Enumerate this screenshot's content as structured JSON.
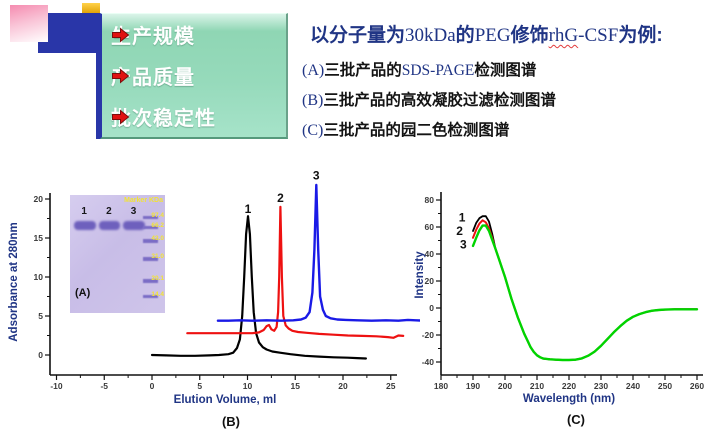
{
  "bullets": {
    "items": [
      {
        "label": "生产规模"
      },
      {
        "label": "产品质量"
      },
      {
        "label": "批次稳定性"
      }
    ],
    "arrow_color": "#e01212",
    "panel_color": "#96dabb"
  },
  "intro": {
    "line1": {
      "t1": "以分子量为",
      "t2": "30kDa",
      "t3": "的",
      "t4": "PEG",
      "t5": "修饰",
      "t6": "rhG",
      "t7": "-CSF",
      "t8": "为例:"
    },
    "items": [
      {
        "prefix": "(A)",
        "t1": "三批产品的",
        "lat": "SDS-PAGE",
        "t2": "检测图谱"
      },
      {
        "prefix": "(B)",
        "t1": "三批产品的高效凝胶过滤检测图谱",
        "lat": "",
        "t2": ""
      },
      {
        "prefix": "(C)",
        "t1": "三批产品的园二色检测图谱",
        "lat": "",
        "t2": ""
      }
    ],
    "text_color": "#203585"
  },
  "gel": {
    "panel_label": "(A)",
    "header": "Marker KDa",
    "lanes": [
      {
        "label": "1",
        "x": 4
      },
      {
        "label": "2",
        "x": 30
      },
      {
        "label": "3",
        "x": 56
      }
    ],
    "marker": [
      {
        "kda": "97.4",
        "frac": 0.175
      },
      {
        "kda": "66.2",
        "frac": 0.26
      },
      {
        "kda": "43.0",
        "frac": 0.375
      },
      {
        "kda": "31.0",
        "frac": 0.525
      },
      {
        "kda": "20.1",
        "frac": 0.715
      },
      {
        "kda": "14.4",
        "frac": 0.845
      }
    ]
  },
  "chart_data": [
    {
      "type": "line",
      "panel_label": "(B)",
      "xlabel": "Elution Volume, ml",
      "ylabel": "Adsorbance at 280nm",
      "xlim": [
        -10,
        25
      ],
      "ylim": [
        0,
        20
      ],
      "xticks": [
        -10,
        -5,
        0,
        5,
        10,
        15,
        20,
        25
      ],
      "yticks": [
        0,
        5,
        10,
        15,
        20
      ],
      "legend": "none",
      "grid": false,
      "series": [
        {
          "name": "1",
          "color": "#000000",
          "points": [
            [
              0,
              0
            ],
            [
              1.5,
              -0.05
            ],
            [
              3,
              -0.1
            ],
            [
              4.5,
              -0.1
            ],
            [
              6,
              -0.05
            ],
            [
              7,
              0
            ],
            [
              8,
              0.1
            ],
            [
              8.5,
              0.3
            ],
            [
              8.9,
              0.9
            ],
            [
              9.2,
              2
            ],
            [
              9.45,
              5
            ],
            [
              9.65,
              10
            ],
            [
              9.85,
              15.5
            ],
            [
              10.05,
              17.8
            ],
            [
              10.25,
              15.5
            ],
            [
              10.45,
              10
            ],
            [
              10.65,
              5.5
            ],
            [
              10.9,
              2.8
            ],
            [
              11.2,
              1.6
            ],
            [
              11.6,
              1
            ],
            [
              12,
              0.7
            ],
            [
              12.6,
              0.45
            ],
            [
              13.4,
              0.3
            ],
            [
              14.5,
              0.1
            ],
            [
              16,
              -0.1
            ],
            [
              17.5,
              -0.2
            ],
            [
              19,
              -0.3
            ],
            [
              20.5,
              -0.35
            ],
            [
              21.5,
              -0.4
            ],
            [
              22.4,
              -0.45
            ]
          ]
        },
        {
          "name": "2",
          "color": "#ee1111",
          "points": [
            [
              3.7,
              2.8
            ],
            [
              5,
              2.8
            ],
            [
              6.5,
              2.8
            ],
            [
              8,
              2.8
            ],
            [
              9.5,
              2.8
            ],
            [
              10.5,
              2.8
            ],
            [
              11.2,
              2.9
            ],
            [
              11.7,
              3.2
            ],
            [
              12,
              3.7
            ],
            [
              12.25,
              3.85
            ],
            [
              12.5,
              3.3
            ],
            [
              12.8,
              3.1
            ],
            [
              13.05,
              3.6
            ],
            [
              13.2,
              5.5
            ],
            [
              13.32,
              10
            ],
            [
              13.45,
              19
            ],
            [
              13.6,
              10
            ],
            [
              13.75,
              5
            ],
            [
              14,
              3.8
            ],
            [
              14.3,
              3.4
            ],
            [
              14.7,
              3.1
            ],
            [
              15.3,
              2.95
            ],
            [
              16.2,
              2.85
            ],
            [
              17.5,
              2.7
            ],
            [
              19,
              2.6
            ],
            [
              20.5,
              2.5
            ],
            [
              22,
              2.45
            ],
            [
              23.5,
              2.4
            ],
            [
              24.7,
              2.3
            ],
            [
              25.3,
              2.2
            ],
            [
              25.8,
              2.5
            ],
            [
              26.3,
              2.45
            ]
          ]
        },
        {
          "name": "3",
          "color": "#1a1ae6",
          "points": [
            [
              6.9,
              4.4
            ],
            [
              8,
              4.4
            ],
            [
              9.2,
              4.45
            ],
            [
              10.5,
              4.4
            ],
            [
              12,
              4.45
            ],
            [
              13.5,
              4.4
            ],
            [
              14.8,
              4.45
            ],
            [
              15.6,
              4.55
            ],
            [
              16.1,
              4.8
            ],
            [
              16.5,
              5.5
            ],
            [
              16.8,
              8
            ],
            [
              17,
              13.5
            ],
            [
              17.2,
              21.8
            ],
            [
              17.4,
              13.5
            ],
            [
              17.6,
              7.5
            ],
            [
              17.9,
              5.8
            ],
            [
              18.2,
              5
            ],
            [
              18.7,
              4.7
            ],
            [
              19.4,
              4.55
            ],
            [
              20.3,
              4.5
            ],
            [
              21.5,
              4.45
            ],
            [
              23,
              4.4
            ],
            [
              24.5,
              4.45
            ],
            [
              25.8,
              4.4
            ],
            [
              26.8,
              4.5
            ],
            [
              27.6,
              4.45
            ],
            [
              28.5,
              4.4
            ]
          ]
        }
      ],
      "annotations": [
        {
          "text": "1",
          "x": 10.05,
          "y": 18.2
        },
        {
          "text": "2",
          "x": 13.45,
          "y": 19.6
        },
        {
          "text": "3",
          "x": 17.2,
          "y": 22.5
        }
      ]
    },
    {
      "type": "line",
      "panel_label": "(C)",
      "xlabel": "Wavelength (nm)",
      "ylabel": "Intensity",
      "xlim": [
        180,
        260
      ],
      "ylim": [
        -40,
        80
      ],
      "xticks": [
        180,
        190,
        200,
        210,
        220,
        230,
        240,
        250,
        260
      ],
      "yticks": [
        -40,
        -20,
        0,
        20,
        40,
        60,
        80
      ],
      "legend": "none",
      "grid": false,
      "series": [
        {
          "name": "1",
          "color": "#000000",
          "points": [
            [
              190,
              57
            ],
            [
              191,
              63
            ],
            [
              192,
              66.5
            ],
            [
              193,
              68
            ],
            [
              194,
              68
            ],
            [
              195,
              64
            ],
            [
              196,
              55
            ],
            [
              197,
              44
            ],
            [
              198,
              37
            ],
            [
              199,
              30
            ],
            [
              200,
              23
            ],
            [
              201,
              15
            ],
            [
              202,
              7
            ],
            [
              203,
              0
            ],
            [
              204,
              -7
            ],
            [
              205,
              -13
            ],
            [
              206,
              -19
            ],
            [
              207,
              -24
            ],
            [
              208,
              -29
            ],
            [
              209,
              -32.5
            ],
            [
              210,
              -35
            ],
            [
              211,
              -36.5
            ],
            [
              212,
              -37.5
            ],
            [
              214,
              -38
            ],
            [
              216,
              -38.3
            ],
            [
              218,
              -38.5
            ],
            [
              220,
              -38.5
            ],
            [
              222,
              -38.3
            ],
            [
              224,
              -37.3
            ],
            [
              226,
              -35.3
            ],
            [
              228,
              -32.3
            ],
            [
              230,
              -28
            ],
            [
              232,
              -23
            ],
            [
              234,
              -18
            ],
            [
              236,
              -13.5
            ],
            [
              238,
              -9.5
            ],
            [
              240,
              -6.5
            ],
            [
              242,
              -4.5
            ],
            [
              244,
              -3
            ],
            [
              246,
              -2
            ],
            [
              248,
              -1.5
            ],
            [
              250,
              -1.2
            ],
            [
              253,
              -1
            ],
            [
              256,
              -1
            ],
            [
              260,
              -1
            ]
          ]
        },
        {
          "name": "2",
          "color": "#ee1111",
          "points": [
            [
              190,
              52
            ],
            [
              191,
              58
            ],
            [
              192,
              62.5
            ],
            [
              193,
              65
            ],
            [
              194,
              63.5
            ],
            [
              195,
              59
            ],
            [
              196,
              52
            ],
            [
              197,
              44
            ],
            [
              198,
              37
            ],
            [
              199,
              30
            ],
            [
              200,
              23
            ],
            [
              201,
              15
            ],
            [
              202,
              7
            ],
            [
              203,
              0
            ],
            [
              204,
              -7
            ],
            [
              205,
              -13
            ],
            [
              206,
              -19
            ],
            [
              207,
              -24
            ],
            [
              208,
              -29
            ],
            [
              209,
              -32.5
            ],
            [
              210,
              -35
            ],
            [
              211,
              -36.5
            ],
            [
              212,
              -37.5
            ],
            [
              214,
              -38
            ],
            [
              216,
              -38.3
            ],
            [
              218,
              -38.5
            ],
            [
              220,
              -38.5
            ],
            [
              222,
              -38.3
            ],
            [
              224,
              -37.3
            ],
            [
              226,
              -35.3
            ],
            [
              228,
              -32.3
            ],
            [
              230,
              -28
            ],
            [
              232,
              -23
            ],
            [
              234,
              -18
            ],
            [
              236,
              -13.5
            ],
            [
              238,
              -9.5
            ],
            [
              240,
              -6.5
            ],
            [
              242,
              -4.5
            ],
            [
              244,
              -3
            ],
            [
              246,
              -2
            ],
            [
              248,
              -1.5
            ],
            [
              250,
              -1.2
            ],
            [
              253,
              -1
            ],
            [
              256,
              -1
            ],
            [
              260,
              -1
            ]
          ]
        },
        {
          "name": "3",
          "color": "#00d400",
          "points": [
            [
              190,
              46
            ],
            [
              191,
              52
            ],
            [
              192,
              57.5
            ],
            [
              193,
              61
            ],
            [
              194,
              61
            ],
            [
              195,
              57
            ],
            [
              196,
              50.5
            ],
            [
              197,
              44
            ],
            [
              198,
              37
            ],
            [
              199,
              30
            ],
            [
              200,
              23
            ],
            [
              201,
              15
            ],
            [
              202,
              7
            ],
            [
              203,
              0
            ],
            [
              204,
              -7
            ],
            [
              205,
              -13
            ],
            [
              206,
              -19
            ],
            [
              207,
              -24
            ],
            [
              208,
              -29
            ],
            [
              209,
              -32.5
            ],
            [
              210,
              -35
            ],
            [
              211,
              -36.5
            ],
            [
              212,
              -37.5
            ],
            [
              214,
              -38
            ],
            [
              216,
              -38.3
            ],
            [
              218,
              -38.5
            ],
            [
              220,
              -38.5
            ],
            [
              222,
              -38.3
            ],
            [
              224,
              -37.3
            ],
            [
              226,
              -35.3
            ],
            [
              228,
              -32.3
            ],
            [
              230,
              -28
            ],
            [
              232,
              -23
            ],
            [
              234,
              -18
            ],
            [
              236,
              -13.5
            ],
            [
              238,
              -9.5
            ],
            [
              240,
              -6.5
            ],
            [
              242,
              -4.5
            ],
            [
              244,
              -3
            ],
            [
              246,
              -2
            ],
            [
              248,
              -1.5
            ],
            [
              250,
              -1.2
            ],
            [
              253,
              -1
            ],
            [
              256,
              -1
            ],
            [
              260,
              -1
            ]
          ]
        }
      ],
      "annotations": [
        {
          "text": "1",
          "x": 186.6,
          "y": 64
        },
        {
          "text": "2",
          "x": 185.8,
          "y": 54
        },
        {
          "text": "3",
          "x": 187.0,
          "y": 44
        }
      ]
    }
  ]
}
